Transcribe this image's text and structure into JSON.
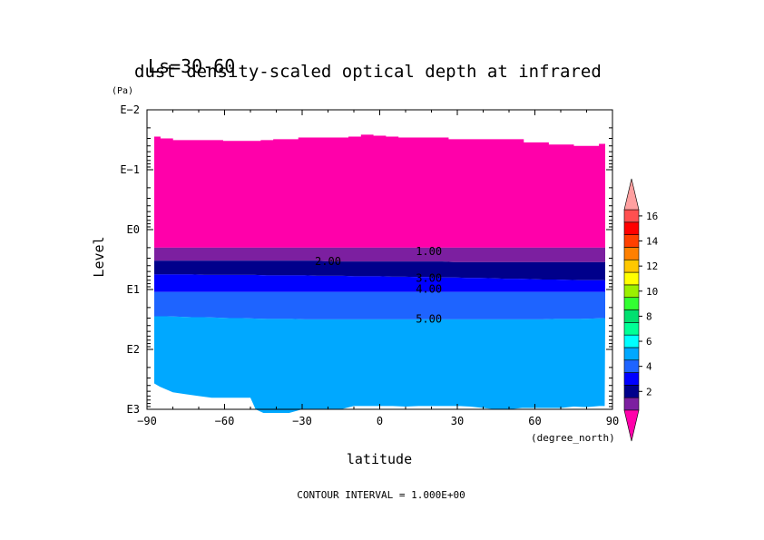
{
  "chart_data": {
    "type": "heatmap",
    "subtitle": "Ls=30-60",
    "title": "dust density-scaled optical depth at infrared",
    "xlabel": "latitude",
    "xunit": "(degree_north)",
    "ylabel": "Level",
    "yunit": "(Pa)",
    "xlim": [
      -90,
      90
    ],
    "x_ticks": [
      -90,
      -60,
      -30,
      0,
      30,
      60,
      90
    ],
    "x_tick_labels": [
      "−90",
      "−60",
      "−30",
      "0",
      "30",
      "60",
      "90"
    ],
    "y_scale": "log",
    "ylim": [
      0.01,
      1000
    ],
    "y_ticks": [
      0.01,
      0.1,
      1,
      10,
      100,
      1000
    ],
    "y_tick_labels": [
      "E−2",
      "E−1",
      "E0",
      "E1",
      "E2",
      "E3"
    ],
    "y_inverted": true,
    "contour_interval_text": "CONTOUR INTERVAL = 1.000E+00",
    "contour_labels": [
      {
        "text": "1.00",
        "x": 19,
        "y": 2.3
      },
      {
        "text": "2.00",
        "x": -20,
        "y": 3.4
      },
      {
        "text": "3.00",
        "x": 19,
        "y": 6.5
      },
      {
        "text": "4.00",
        "x": 19,
        "y": 9.8
      },
      {
        "text": "5.00",
        "x": 19,
        "y": 31
      }
    ],
    "latitudes": [
      -90,
      -85,
      -80,
      -75,
      -70,
      -65,
      -60,
      -55,
      -50,
      -45,
      -40,
      -35,
      -30,
      -25,
      -20,
      -15,
      -10,
      -5,
      0,
      5,
      10,
      15,
      20,
      25,
      30,
      35,
      40,
      45,
      50,
      55,
      60,
      65,
      70,
      75,
      80,
      85,
      90
    ],
    "top_of_data_pa": [
      0.028,
      0.03,
      0.032,
      0.032,
      0.032,
      0.032,
      0.033,
      0.033,
      0.033,
      0.032,
      0.031,
      0.031,
      0.029,
      0.029,
      0.029,
      0.029,
      0.028,
      0.026,
      0.027,
      0.028,
      0.029,
      0.029,
      0.029,
      0.029,
      0.031,
      0.031,
      0.031,
      0.031,
      0.031,
      0.031,
      0.035,
      0.035,
      0.038,
      0.038,
      0.04,
      0.04,
      0.037
    ],
    "contour_levels_pa": {
      "1": [
        2.0,
        2.0,
        2.0,
        2.0,
        2.0,
        2.0,
        2.0,
        2.0,
        2.0,
        2.0,
        2.0,
        2.0,
        2.0,
        2.0,
        2.0,
        2.0,
        2.0,
        2.0,
        2.0,
        2.0,
        2.0,
        2.0,
        2.0,
        2.0,
        2.0,
        2.0,
        2.0,
        2.0,
        2.0,
        2.0,
        2.0,
        2.0,
        2.0,
        2.0,
        2.0,
        2.0,
        2.0
      ],
      "2": [
        3.3,
        3.3,
        3.3,
        3.3,
        3.3,
        3.3,
        3.3,
        3.3,
        3.3,
        3.3,
        3.3,
        3.3,
        3.3,
        3.3,
        3.4,
        3.4,
        3.4,
        3.4,
        3.4,
        3.4,
        3.4,
        3.4,
        3.4,
        3.4,
        3.5,
        3.5,
        3.5,
        3.5,
        3.5,
        3.5,
        3.5,
        3.5,
        3.5,
        3.5,
        3.5,
        3.5,
        3.5
      ],
      "3": [
        5.6,
        5.6,
        5.6,
        5.6,
        5.7,
        5.7,
        5.7,
        5.7,
        5.7,
        5.8,
        5.8,
        5.8,
        5.8,
        5.9,
        5.9,
        5.9,
        6.0,
        6.0,
        6.0,
        6.1,
        6.1,
        6.2,
        6.2,
        6.3,
        6.3,
        6.4,
        6.4,
        6.5,
        6.6,
        6.6,
        6.7,
        6.8,
        6.8,
        6.9,
        7.0,
        7.0,
        7.0
      ],
      "4": [
        11,
        11,
        11,
        11,
        11,
        11,
        11,
        11,
        11,
        11,
        11,
        11,
        11,
        11,
        11,
        11,
        11,
        11,
        11,
        11,
        11,
        11,
        11,
        11,
        11,
        11,
        11,
        11,
        11,
        11,
        11,
        11,
        11,
        11,
        11,
        11,
        11
      ],
      "5": [
        28,
        28,
        28.5,
        29,
        29,
        29.5,
        30,
        30,
        30.5,
        31,
        31,
        31,
        31.5,
        31.5,
        31.5,
        31.5,
        31.5,
        31.5,
        31.5,
        31.5,
        31.5,
        31.5,
        31.5,
        31.5,
        31.5,
        31.5,
        31.5,
        31.5,
        31.5,
        31.5,
        31.5,
        31.5,
        31,
        31,
        31,
        30.5,
        30
      ]
    },
    "bottom_outline": [
      {
        "x": -90,
        "y": 370
      },
      {
        "x": -85,
        "y": 420
      },
      {
        "x": -80,
        "y": 520
      },
      {
        "x": -75,
        "y": 560
      },
      {
        "x": -70,
        "y": 600
      },
      {
        "x": -65,
        "y": 640
      },
      {
        "x": -60,
        "y": 640
      },
      {
        "x": -55,
        "y": 640
      },
      {
        "x": -50,
        "y": 640
      },
      {
        "x": -48,
        "y": 1000
      },
      {
        "x": -45,
        "y": 1150
      },
      {
        "x": -40,
        "y": 1150
      },
      {
        "x": -35,
        "y": 1150
      },
      {
        "x": -30,
        "y": 1000
      },
      {
        "x": -25,
        "y": 1000
      },
      {
        "x": -20,
        "y": 1000
      },
      {
        "x": -15,
        "y": 1000
      },
      {
        "x": -10,
        "y": 880
      },
      {
        "x": -5,
        "y": 880
      },
      {
        "x": 0,
        "y": 880
      },
      {
        "x": 5,
        "y": 880
      },
      {
        "x": 10,
        "y": 900
      },
      {
        "x": 15,
        "y": 880
      },
      {
        "x": 20,
        "y": 880
      },
      {
        "x": 25,
        "y": 880
      },
      {
        "x": 30,
        "y": 880
      },
      {
        "x": 35,
        "y": 900
      },
      {
        "x": 40,
        "y": 950
      },
      {
        "x": 45,
        "y": 1000
      },
      {
        "x": 50,
        "y": 1000
      },
      {
        "x": 55,
        "y": 950
      },
      {
        "x": 60,
        "y": 950
      },
      {
        "x": 65,
        "y": 950
      },
      {
        "x": 70,
        "y": 950
      },
      {
        "x": 75,
        "y": 900
      },
      {
        "x": 80,
        "y": 920
      },
      {
        "x": 85,
        "y": 880
      },
      {
        "x": 87,
        "y": 880
      }
    ],
    "colorbar": {
      "levels": [
        1,
        2,
        3,
        4,
        5,
        6,
        7,
        8,
        9,
        10,
        11,
        12,
        13,
        14,
        15,
        16,
        17
      ],
      "tick_labels": [
        "2",
        "4",
        "6",
        "8",
        "10",
        "12",
        "14",
        "16"
      ],
      "colors": {
        "below_1": "#ff00aa",
        "1_2": "#7c1fa0",
        "2_3": "#00008b",
        "3_4": "#0000ff",
        "4_5": "#1e64ff",
        "5_6": "#00a8ff",
        "6_7": "#00ffff",
        "7_8": "#00ff96",
        "8_9": "#00e070",
        "9_10": "#32ff32",
        "10_11": "#9bf000",
        "11_12": "#ffff00",
        "12_13": "#ffc800",
        "13_14": "#ff8000",
        "14_15": "#ff4000",
        "15_16": "#ff0000",
        "16_17": "#ff5050",
        "above_17": "#ffa0a0"
      }
    }
  }
}
